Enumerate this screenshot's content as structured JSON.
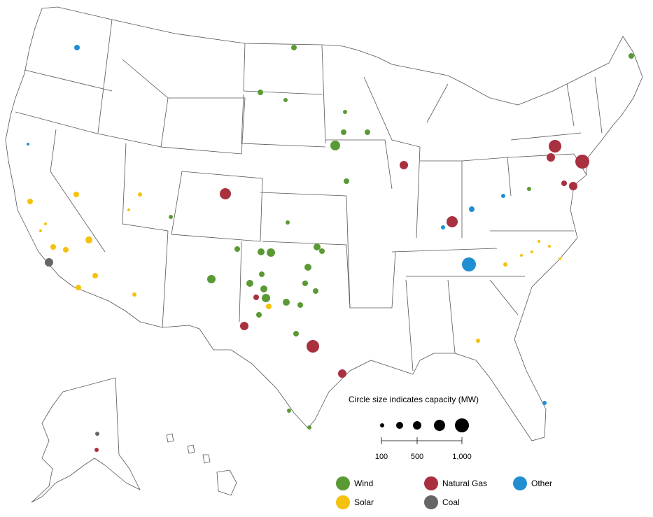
{
  "legend": {
    "size_title": "Circle size indicates capacity (MW)",
    "size_scale": [
      {
        "label": "100",
        "mw": 100
      },
      {
        "label": "",
        "mw": 300
      },
      {
        "label": "500",
        "mw": 500
      },
      {
        "label": "",
        "mw": 750
      },
      {
        "label": "1,000",
        "mw": 1000
      }
    ],
    "categories": [
      {
        "key": "wind",
        "label": "Wind",
        "color": "#5a9a35"
      },
      {
        "key": "natural_gas",
        "label": "Natural Gas",
        "color": "#a8303f"
      },
      {
        "key": "other",
        "label": "Other",
        "color": "#1f8fd1"
      },
      {
        "key": "solar",
        "label": "Solar",
        "color": "#f4c20d"
      },
      {
        "key": "coal",
        "label": "Coal",
        "color": "#666666"
      }
    ]
  }
}
